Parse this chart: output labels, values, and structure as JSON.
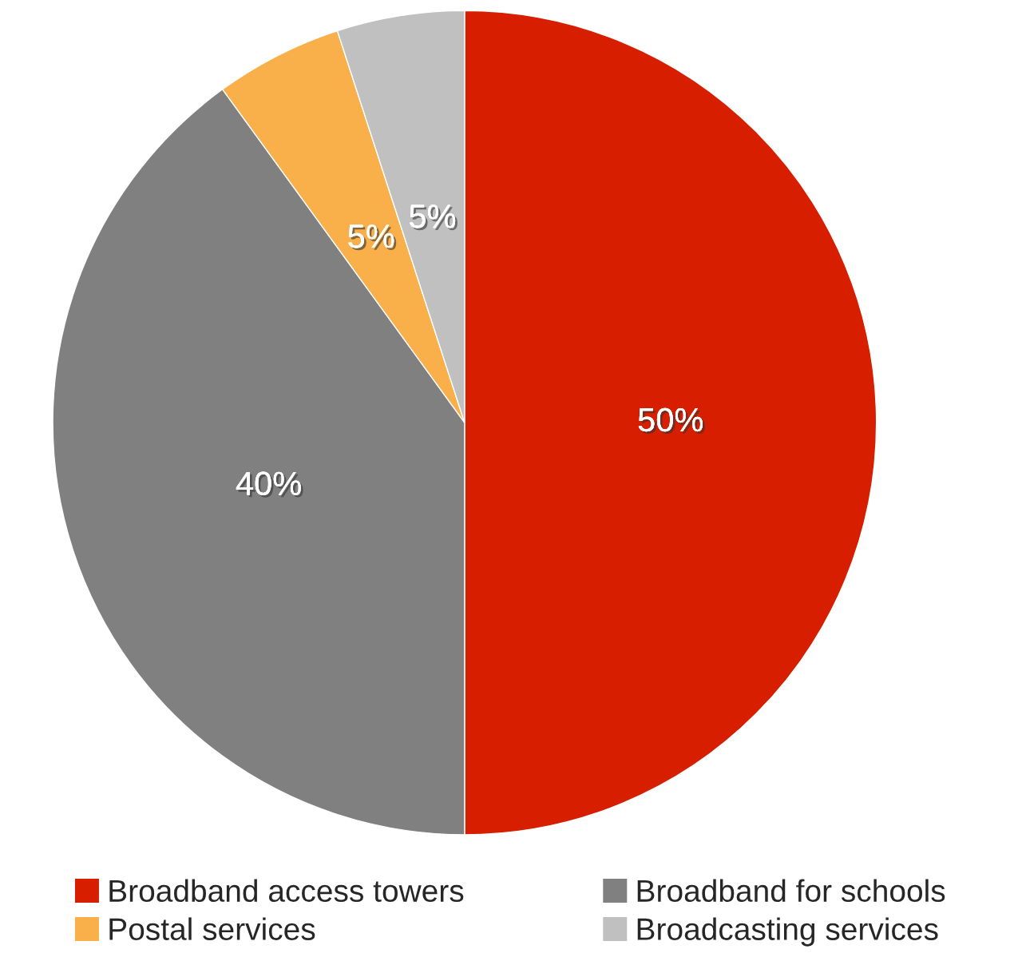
{
  "chart_data": {
    "type": "pie",
    "categories": [
      "Broadband access towers",
      "Broadband for schools",
      "Postal services",
      "Broadcasting services"
    ],
    "values": [
      50,
      40,
      5,
      5
    ],
    "colors": [
      "#d71f00",
      "#808080",
      "#f9b04a",
      "#c0c0c0"
    ],
    "value_labels": [
      "50%",
      "40%",
      "5%",
      "5%"
    ],
    "legend": "bottom"
  }
}
